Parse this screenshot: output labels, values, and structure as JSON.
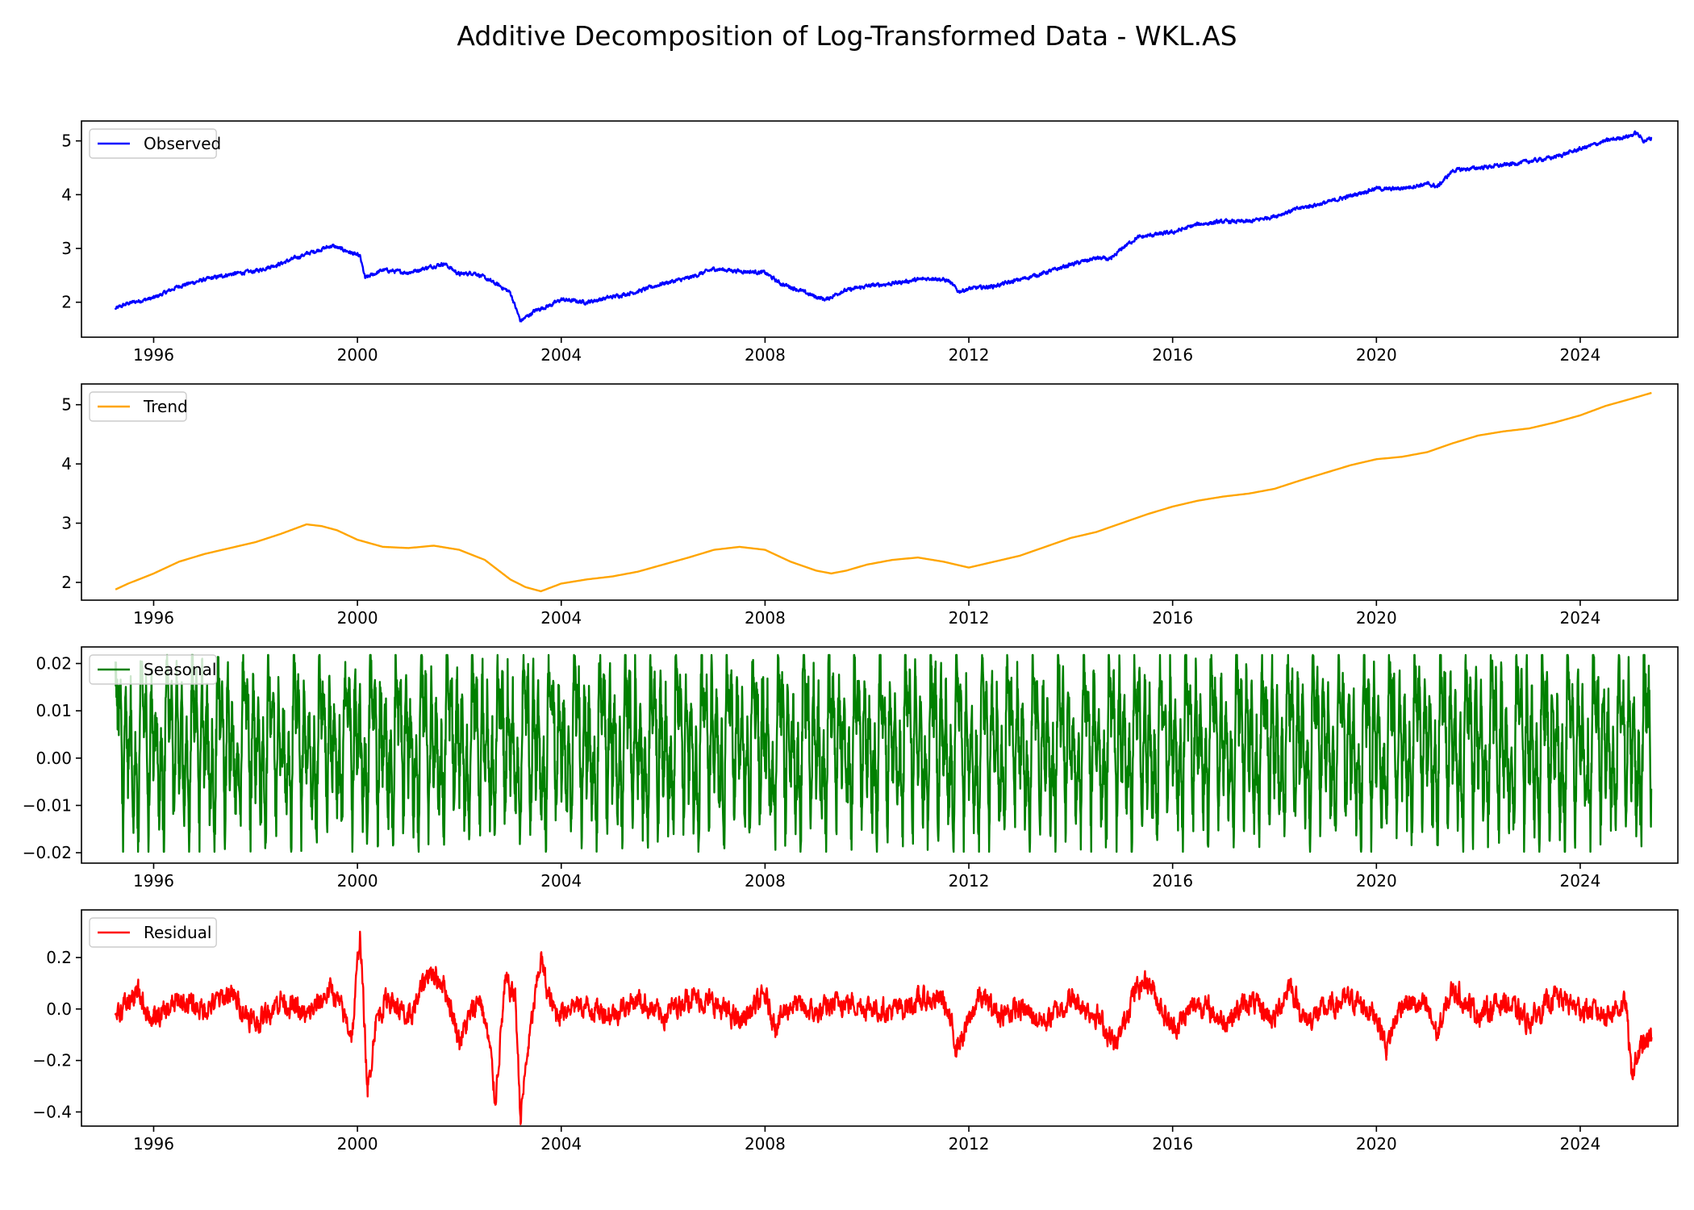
{
  "figure": {
    "title": "Additive Decomposition of Log-Transformed Data - WKL.AS"
  },
  "chart_data": [
    {
      "type": "line",
      "legend": "Observed",
      "legend_position": "upper-left",
      "color": "#0000ff",
      "xlim": [
        "1994-08",
        "2025-12"
      ],
      "ylim": [
        1.35,
        5.37
      ],
      "x_ticks": [
        "1996",
        "2000",
        "2004",
        "2008",
        "2012",
        "2016",
        "2020",
        "2024"
      ],
      "y_ticks": [
        2,
        3,
        4,
        5
      ],
      "y_tick_labels": [
        "2",
        "3",
        "4",
        "5"
      ],
      "noise": 0.035,
      "x": [
        1995.25,
        1995.5,
        1996.0,
        1996.5,
        1997.0,
        1997.5,
        1998.0,
        1998.5,
        1999.0,
        1999.5,
        1999.8,
        2000.05,
        2000.15,
        2000.5,
        2001.0,
        2001.4,
        2001.7,
        2002.0,
        2002.3,
        2002.6,
        2002.8,
        2003.0,
        2003.2,
        2003.5,
        2003.8,
        2004.0,
        2004.5,
        2005.0,
        2005.5,
        2006.0,
        2006.5,
        2007.0,
        2007.5,
        2008.0,
        2008.3,
        2008.6,
        2009.0,
        2009.2,
        2009.5,
        2010.0,
        2010.5,
        2011.0,
        2011.3,
        2011.6,
        2011.8,
        2012.0,
        2012.5,
        2013.0,
        2013.5,
        2014.0,
        2014.5,
        2014.8,
        2015.0,
        2015.3,
        2015.6,
        2016.0,
        2016.5,
        2017.0,
        2017.5,
        2018.0,
        2018.5,
        2019.0,
        2019.5,
        2020.0,
        2020.2,
        2020.5,
        2021.0,
        2021.2,
        2021.5,
        2022.0,
        2022.5,
        2023.0,
        2023.5,
        2024.0,
        2024.5,
        2025.0,
        2025.1,
        2025.25,
        2025.4
      ],
      "y": [
        1.88,
        1.98,
        2.08,
        2.3,
        2.42,
        2.52,
        2.58,
        2.72,
        2.9,
        3.05,
        2.95,
        2.85,
        2.45,
        2.6,
        2.55,
        2.65,
        2.72,
        2.52,
        2.55,
        2.4,
        2.3,
        2.18,
        1.65,
        1.85,
        1.95,
        2.05,
        2.0,
        2.1,
        2.2,
        2.35,
        2.45,
        2.62,
        2.58,
        2.55,
        2.35,
        2.25,
        2.1,
        2.05,
        2.2,
        2.3,
        2.35,
        2.42,
        2.45,
        2.4,
        2.2,
        2.25,
        2.3,
        2.42,
        2.55,
        2.7,
        2.82,
        2.8,
        3.0,
        3.2,
        3.25,
        3.3,
        3.45,
        3.5,
        3.5,
        3.6,
        3.75,
        3.85,
        3.98,
        4.12,
        4.1,
        4.12,
        4.2,
        4.15,
        4.45,
        4.5,
        4.55,
        4.62,
        4.7,
        4.85,
        5.0,
        5.1,
        5.15,
        5.0,
        5.05
      ]
    },
    {
      "type": "line",
      "legend": "Trend",
      "legend_position": "upper-left",
      "color": "#ffa500",
      "xlim": [
        "1994-08",
        "2025-12"
      ],
      "ylim": [
        1.7,
        5.35
      ],
      "x_ticks": [
        "1996",
        "2000",
        "2004",
        "2008",
        "2012",
        "2016",
        "2020",
        "2024"
      ],
      "y_ticks": [
        2,
        3,
        4,
        5
      ],
      "y_tick_labels": [
        "2",
        "3",
        "4",
        "5"
      ],
      "noise": 0,
      "x": [
        1995.25,
        1995.5,
        1996.0,
        1996.5,
        1997.0,
        1997.5,
        1998.0,
        1998.5,
        1999.0,
        1999.3,
        1999.6,
        2000.0,
        2000.5,
        2001.0,
        2001.5,
        2002.0,
        2002.5,
        2003.0,
        2003.3,
        2003.6,
        2004.0,
        2004.5,
        2005.0,
        2005.5,
        2006.0,
        2006.5,
        2007.0,
        2007.5,
        2008.0,
        2008.5,
        2009.0,
        2009.3,
        2009.6,
        2010.0,
        2010.5,
        2011.0,
        2011.5,
        2012.0,
        2012.5,
        2013.0,
        2013.5,
        2014.0,
        2014.5,
        2015.0,
        2015.5,
        2016.0,
        2016.5,
        2017.0,
        2017.5,
        2018.0,
        2018.5,
        2019.0,
        2019.5,
        2020.0,
        2020.5,
        2021.0,
        2021.5,
        2022.0,
        2022.5,
        2023.0,
        2023.5,
        2024.0,
        2024.5,
        2025.0,
        2025.4
      ],
      "y": [
        1.88,
        1.98,
        2.15,
        2.35,
        2.48,
        2.58,
        2.68,
        2.82,
        2.98,
        2.95,
        2.88,
        2.72,
        2.6,
        2.58,
        2.62,
        2.55,
        2.38,
        2.05,
        1.92,
        1.85,
        1.98,
        2.05,
        2.1,
        2.18,
        2.3,
        2.42,
        2.55,
        2.6,
        2.55,
        2.35,
        2.2,
        2.15,
        2.2,
        2.3,
        2.38,
        2.42,
        2.35,
        2.25,
        2.35,
        2.45,
        2.6,
        2.75,
        2.85,
        3.0,
        3.15,
        3.28,
        3.38,
        3.45,
        3.5,
        3.58,
        3.72,
        3.85,
        3.98,
        4.08,
        4.12,
        4.2,
        4.35,
        4.48,
        4.55,
        4.6,
        4.7,
        4.82,
        4.98,
        5.1,
        5.2
      ]
    },
    {
      "type": "line",
      "legend": "Seasonal",
      "legend_position": "upper-left",
      "color": "#008000",
      "xlim": [
        "1994-08",
        "2025-12"
      ],
      "ylim": [
        -0.0222,
        0.0235
      ],
      "x_ticks": [
        "1996",
        "2000",
        "2004",
        "2008",
        "2012",
        "2016",
        "2020",
        "2024"
      ],
      "y_ticks": [
        -0.02,
        -0.01,
        0.0,
        0.01,
        0.02
      ],
      "y_tick_labels": [
        "−0.02",
        "−0.01",
        "0.00",
        "0.01",
        "0.02"
      ],
      "pattern": "repeating cycle every 0.5 years",
      "cycle_period_years": 0.5,
      "start": 1995.25,
      "end": 2025.4,
      "cycle_phase": [
        0.0,
        0.1,
        0.2,
        0.3,
        0.4,
        0.5,
        0.6,
        0.7,
        0.8,
        0.9,
        1.0
      ],
      "cycle_values": [
        0.022,
        0.008,
        0.015,
        -0.016,
        0.018,
        -0.005,
        0.012,
        -0.012,
        0.004,
        -0.018,
        0.022
      ]
    },
    {
      "type": "line",
      "legend": "Residual",
      "legend_position": "upper-left",
      "color": "#ff0000",
      "xlim": [
        "1994-08",
        "2025-12"
      ],
      "ylim": [
        -0.455,
        0.385
      ],
      "x_ticks": [
        "1996",
        "2000",
        "2004",
        "2008",
        "2012",
        "2016",
        "2020",
        "2024"
      ],
      "y_ticks": [
        -0.4,
        -0.2,
        0.0,
        0.2
      ],
      "y_tick_labels": [
        "−0.4",
        "−0.2",
        "0.0",
        "0.2"
      ],
      "noise": 0.045,
      "x": [
        1995.25,
        1995.7,
        1996.0,
        1996.5,
        1997.0,
        1997.5,
        1998.0,
        1998.5,
        1999.0,
        1999.5,
        1999.9,
        2000.05,
        2000.1,
        2000.2,
        2000.35,
        2000.6,
        2001.0,
        2001.4,
        2001.7,
        2002.0,
        2002.4,
        2002.6,
        2002.7,
        2002.9,
        2003.1,
        2003.2,
        2003.35,
        2003.6,
        2003.75,
        2003.9,
        2004.2,
        2004.6,
        2005.0,
        2005.5,
        2006.0,
        2006.5,
        2007.0,
        2007.5,
        2008.0,
        2008.2,
        2008.5,
        2009.0,
        2009.5,
        2010.0,
        2010.5,
        2011.0,
        2011.5,
        2011.75,
        2011.9,
        2012.2,
        2012.6,
        2013.0,
        2013.5,
        2014.0,
        2014.5,
        2014.9,
        2015.2,
        2015.5,
        2016.0,
        2016.5,
        2017.0,
        2017.5,
        2018.0,
        2018.3,
        2018.6,
        2019.0,
        2019.5,
        2020.0,
        2020.2,
        2020.5,
        2021.0,
        2021.2,
        2021.5,
        2022.0,
        2022.5,
        2023.0,
        2023.5,
        2024.0,
        2024.5,
        2024.9,
        2025.0,
        2025.1,
        2025.2,
        2025.4
      ],
      "y": [
        -0.02,
        0.06,
        -0.05,
        0.03,
        0.0,
        0.06,
        -0.06,
        0.04,
        -0.03,
        0.08,
        -0.1,
        0.3,
        0.1,
        -0.34,
        -0.05,
        0.05,
        -0.05,
        0.15,
        0.1,
        -0.12,
        0.05,
        -0.15,
        -0.36,
        0.1,
        0.05,
        -0.42,
        -0.15,
        0.2,
        0.05,
        -0.02,
        0.02,
        0.0,
        -0.02,
        0.04,
        -0.03,
        0.05,
        0.02,
        -0.05,
        0.05,
        -0.06,
        0.02,
        -0.02,
        0.03,
        0.01,
        -0.01,
        0.03,
        0.04,
        -0.14,
        -0.1,
        0.05,
        -0.02,
        0.0,
        -0.05,
        0.04,
        -0.02,
        -0.15,
        0.05,
        0.12,
        -0.08,
        0.03,
        -0.05,
        0.03,
        -0.04,
        0.1,
        -0.05,
        0.0,
        0.04,
        -0.02,
        -0.15,
        0.03,
        0.0,
        -0.1,
        0.08,
        -0.02,
        0.03,
        -0.05,
        0.05,
        0.0,
        -0.02,
        0.02,
        -0.25,
        -0.2,
        -0.15,
        -0.11
      ]
    }
  ]
}
